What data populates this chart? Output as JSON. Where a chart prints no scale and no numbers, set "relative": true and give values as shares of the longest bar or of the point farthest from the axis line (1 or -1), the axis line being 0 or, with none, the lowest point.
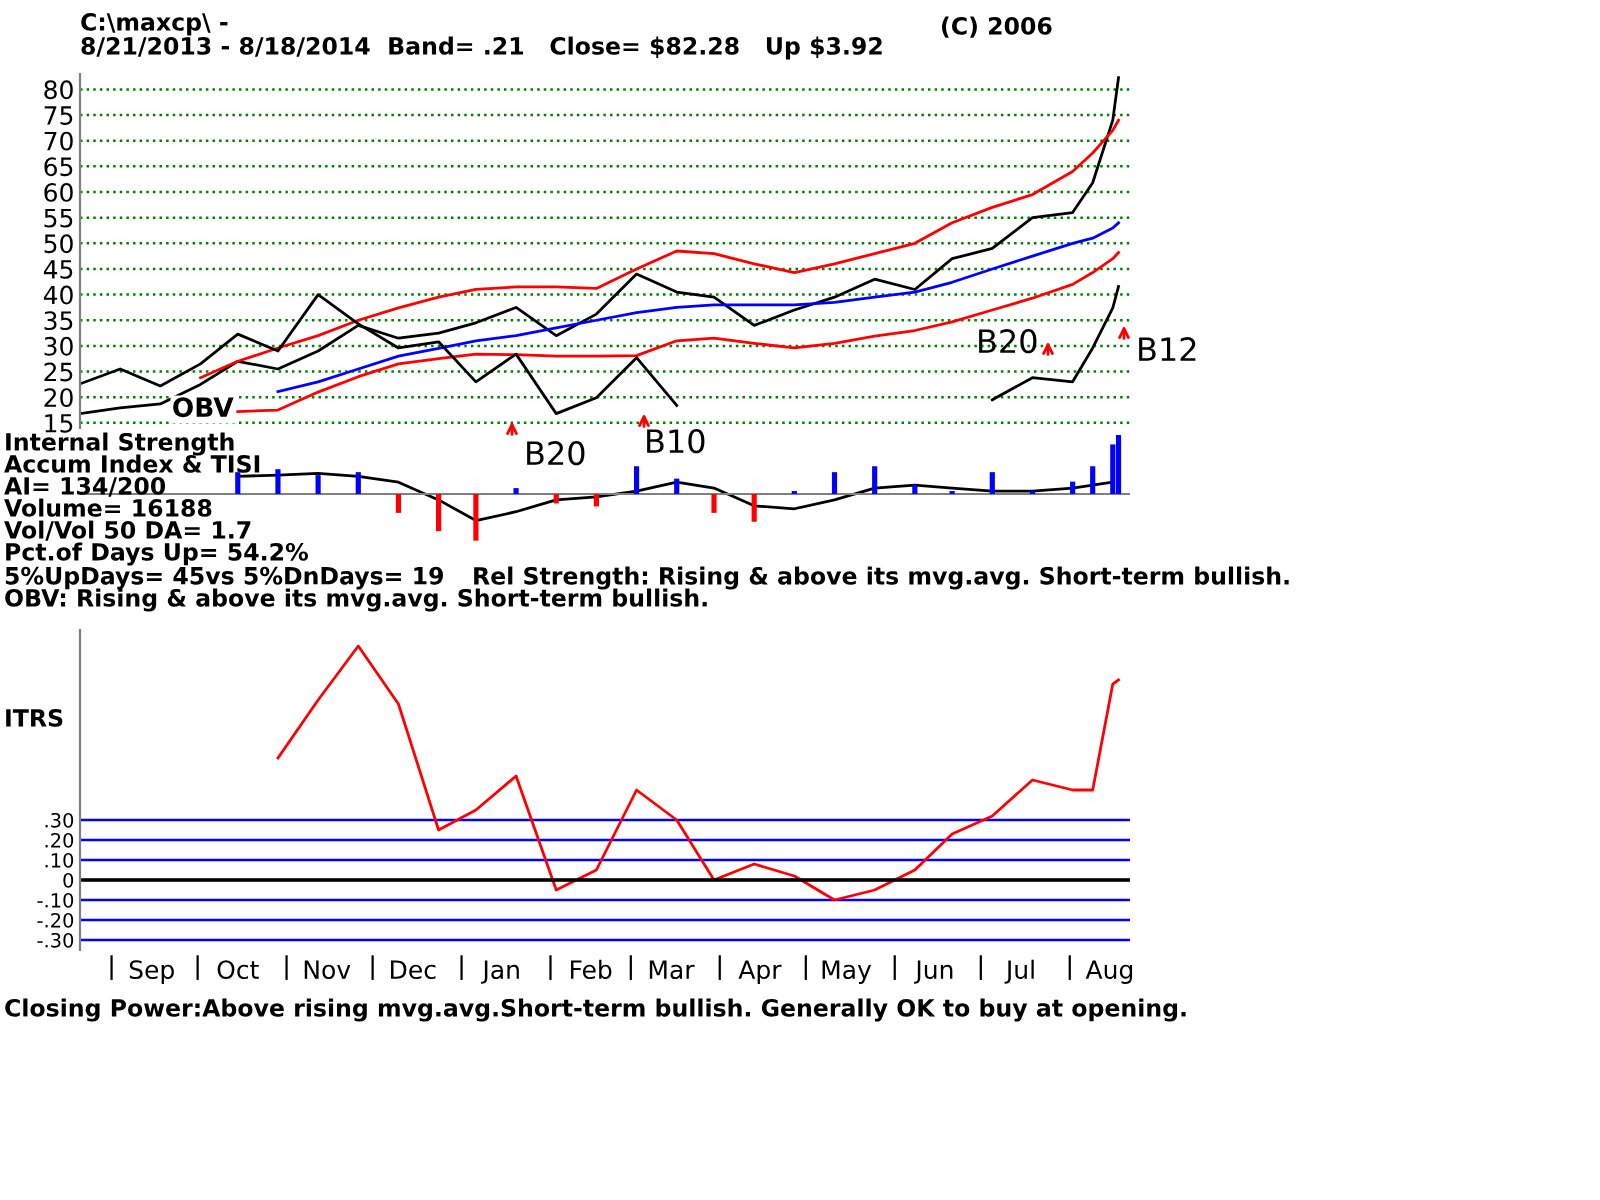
{
  "chart_data": [
    {
      "type": "line",
      "title": "C:\\maxcp\\ -",
      "subtitle": "8/21/2013 - 8/18/2014  Band= .21   Close= $82.28   Up $3.92",
      "x": [
        "2013-08-21",
        "2013-09-04",
        "2013-09-18",
        "2013-10-02",
        "2013-10-15",
        "2013-10-29",
        "2013-11-12",
        "2013-11-26",
        "2013-12-10",
        "2013-12-24",
        "2014-01-06",
        "2014-01-20",
        "2014-02-03",
        "2014-02-17",
        "2014-03-03",
        "2014-03-17",
        "2014-03-30",
        "2014-04-13",
        "2014-04-27",
        "2014-05-11",
        "2014-05-25",
        "2014-06-08",
        "2014-06-21",
        "2014-07-05",
        "2014-07-19",
        "2014-08-02",
        "2014-08-09",
        "2014-08-16",
        "2014-08-18"
      ],
      "series": [
        {
          "color": "#000000",
          "values": [
            16.8,
            17.9,
            18.7,
            22.5,
            27.0,
            25.5,
            29,
            34,
            31.5,
            32.5,
            34.5,
            37.5,
            32,
            36.2,
            44,
            40.5,
            39.5,
            34,
            37,
            39.5,
            43,
            41,
            47,
            49,
            55,
            56,
            61.8,
            74,
            82.3
          ]
        },
        {
          "color": "#ff0000",
          "values": [
            null,
            null,
            null,
            23.8,
            27,
            29.6,
            32,
            35,
            37.4,
            39.5,
            41,
            41.5,
            41.5,
            41.2,
            45,
            48.5,
            48,
            46,
            44.3,
            46,
            48,
            50,
            54,
            57,
            59.5,
            64,
            67.6,
            72,
            74
          ]
        },
        {
          "color": "#ff0000",
          "values": [
            null,
            null,
            null,
            null,
            17.2,
            17.5,
            21,
            24,
            26.5,
            27.5,
            28.4,
            28.3,
            28,
            28,
            28.1,
            31,
            31.5,
            30.5,
            29.6,
            30.5,
            31.9,
            33,
            34.7,
            37,
            39.3,
            42,
            44.3,
            47,
            48.2
          ]
        },
        {
          "color": "#0000ff",
          "values": [
            null,
            null,
            null,
            null,
            null,
            21.1,
            23,
            25.5,
            28,
            29.5,
            31,
            32,
            33.5,
            35,
            36.5,
            37.5,
            38,
            38,
            38,
            38.5,
            39.5,
            40.5,
            42.4,
            45,
            47.5,
            50,
            51,
            53,
            54
          ]
        },
        {
          "name": "OBV",
          "color": "#000000",
          "values": [
            22.6,
            25.5,
            22.2,
            26.5,
            32.3,
            29,
            40,
            34.3,
            29.6,
            30.8,
            23,
            28.4,
            16.8,
            19.9,
            27.7,
            18.4,
            null,
            null,
            null,
            null,
            null,
            null,
            null,
            19.5,
            23.8,
            23.0,
            29.6,
            37.4,
            41.6
          ]
        }
      ],
      "annotations": [
        "(C) 2006",
        "B20",
        "B10",
        "B20",
        "B12"
      ],
      "xlim": [
        "2013-08-21",
        "2014-08-22"
      ],
      "ylim": [
        14,
        83
      ],
      "yticks": [
        15,
        20,
        25,
        30,
        35,
        40,
        45,
        50,
        55,
        60,
        65,
        70,
        75,
        80
      ],
      "grid": "y",
      "tick_labels": "y"
    },
    {
      "type": "bar",
      "relative": true,
      "x": [
        "2013-10-15",
        "2013-10-29",
        "2013-11-12",
        "2013-11-26",
        "2013-12-10",
        "2013-12-24",
        "2014-01-06",
        "2014-01-20",
        "2014-02-03",
        "2014-02-17",
        "2014-03-03",
        "2014-03-17",
        "2014-03-30",
        "2014-04-13",
        "2014-04-27",
        "2014-05-11",
        "2014-05-25",
        "2014-06-08",
        "2014-06-21",
        "2014-07-05",
        "2014-07-19",
        "2014-08-02",
        "2014-08-09",
        "2014-08-16",
        "2014-08-18"
      ],
      "series": [
        {
          "type": "bar",
          "values": [
            0.37,
            0.42,
            0.32,
            0.37,
            -0.32,
            -0.63,
            -0.79,
            0.1,
            -0.16,
            -0.21,
            0.47,
            0.26,
            -0.32,
            -0.47,
            0.05,
            0.37,
            0.47,
            0.16,
            0.05,
            0.37,
            0.05,
            0.21,
            0.47,
            0.84,
            1
          ],
          "colors": [
            "#0000ff",
            "#0000ff",
            "#0000ff",
            "#0000ff",
            "#ff0000",
            "#ff0000",
            "#ff0000",
            "#0000ff",
            "#ff0000",
            "#ff0000",
            "#0000ff",
            "#0000ff",
            "#ff0000",
            "#ff0000",
            "#0000ff",
            "#0000ff",
            "#0000ff",
            "#0000ff",
            "#0000ff",
            "#0000ff",
            "#0000ff",
            "#0000ff",
            "#0000ff",
            "#0000ff",
            "#0000ff"
          ]
        },
        {
          "type": "line",
          "color": "#000000",
          "values": [
            0.3,
            0.32,
            0.35,
            0.3,
            0.2,
            -0.1,
            -0.45,
            -0.3,
            -0.1,
            -0.05,
            0.05,
            0.2,
            0.1,
            -0.2,
            -0.25,
            -0.1,
            0.1,
            0.15,
            0.1,
            0.05,
            0.05,
            0.1,
            0.15,
            0.2,
            null
          ]
        }
      ],
      "annotations": [
        "Internal Strength",
        "Accum Index & TISI",
        "AI= 134/200",
        "Volume= 16188",
        "Vol/Vol 50 DA= 1.7",
        "Pct.of Days Up= 54.2%",
        "5%UpDays= 45vs 5%DnDays= 19",
        "Rel Strength: Rising & above its mvg.avg. Short-term bullish.",
        "OBV: Rising & above its mvg.avg. Short-term bullish."
      ],
      "xlim": [
        "2013-08-21",
        "2014-08-22"
      ],
      "tick_labels": false
    },
    {
      "type": "line",
      "x": [
        "2013-10-29",
        "2013-11-12",
        "2013-11-26",
        "2013-12-10",
        "2013-12-24",
        "2014-01-06",
        "2014-01-20",
        "2014-02-03",
        "2014-02-17",
        "2014-03-03",
        "2014-03-17",
        "2014-03-30",
        "2014-04-13",
        "2014-04-27",
        "2014-05-11",
        "2014-05-25",
        "2014-06-08",
        "2014-06-21",
        "2014-07-05",
        "2014-07-19",
        "2014-08-02",
        "2014-08-09",
        "2014-08-16",
        "2014-08-18"
      ],
      "series": [
        {
          "color": "#ff0000",
          "values": [
            0.61,
            0.9,
            1.17,
            0.88,
            0.25,
            0.35,
            0.52,
            -0.05,
            0.05,
            0.45,
            0.3,
            0.0,
            0.08,
            0.02,
            -0.1,
            -0.05,
            0.05,
            0.23,
            0.32,
            0.5,
            0.45,
            0.45,
            0.98,
            1.0
          ]
        }
      ],
      "annotations": [
        "ITRS",
        "Closing Power:Above rising mvg.avg.Short-term bullish. Generally OK to buy at opening."
      ],
      "ref_lines": [
        {
          "axis": "y",
          "value": 0,
          "color": "#000000"
        }
      ],
      "xlim": [
        "2013-08-21",
        "2014-08-22"
      ],
      "ylim": [
        -0.35,
        1.25
      ],
      "yticks": [
        {
          "value": 0.3,
          "label": ".30"
        },
        {
          "value": 0.2,
          "label": ".20"
        },
        {
          "value": 0.1,
          "label": ".10"
        },
        {
          "value": 0,
          "label": "0"
        },
        {
          "value": -0.1,
          "label": "-.10"
        },
        {
          "value": -0.2,
          "label": "-.20"
        },
        {
          "value": -0.3,
          "label": "-.30"
        }
      ],
      "xticks": [
        {
          "value": "2013-09-01",
          "label": null
        },
        {
          "value": "2013-09-15",
          "label": "Sep"
        },
        {
          "value": "2013-10-01",
          "label": null
        },
        {
          "value": "2013-10-15",
          "label": "Oct"
        },
        {
          "value": "2013-11-01",
          "label": null
        },
        {
          "value": "2013-11-15",
          "label": "Nov"
        },
        {
          "value": "2013-12-01",
          "label": null
        },
        {
          "value": "2013-12-15",
          "label": "Dec"
        },
        {
          "value": "2014-01-01",
          "label": null
        },
        {
          "value": "2014-01-15",
          "label": "Jan"
        },
        {
          "value": "2014-02-01",
          "label": null
        },
        {
          "value": "2014-02-15",
          "label": "Feb"
        },
        {
          "value": "2014-03-01",
          "label": null
        },
        {
          "value": "2014-03-15",
          "label": "Mar"
        },
        {
          "value": "2014-04-01",
          "label": null
        },
        {
          "value": "2014-04-15",
          "label": "Apr"
        },
        {
          "value": "2014-05-01",
          "label": null
        },
        {
          "value": "2014-05-15",
          "label": "May"
        },
        {
          "value": "2014-06-01",
          "label": null
        },
        {
          "value": "2014-06-15",
          "label": "Jun"
        },
        {
          "value": "2014-07-01",
          "label": null
        },
        {
          "value": "2014-07-15",
          "label": "Jul"
        },
        {
          "value": "2014-08-01",
          "label": null
        },
        {
          "value": "2014-08-15",
          "label": "Aug"
        }
      ],
      "grid": "y"
    }
  ]
}
